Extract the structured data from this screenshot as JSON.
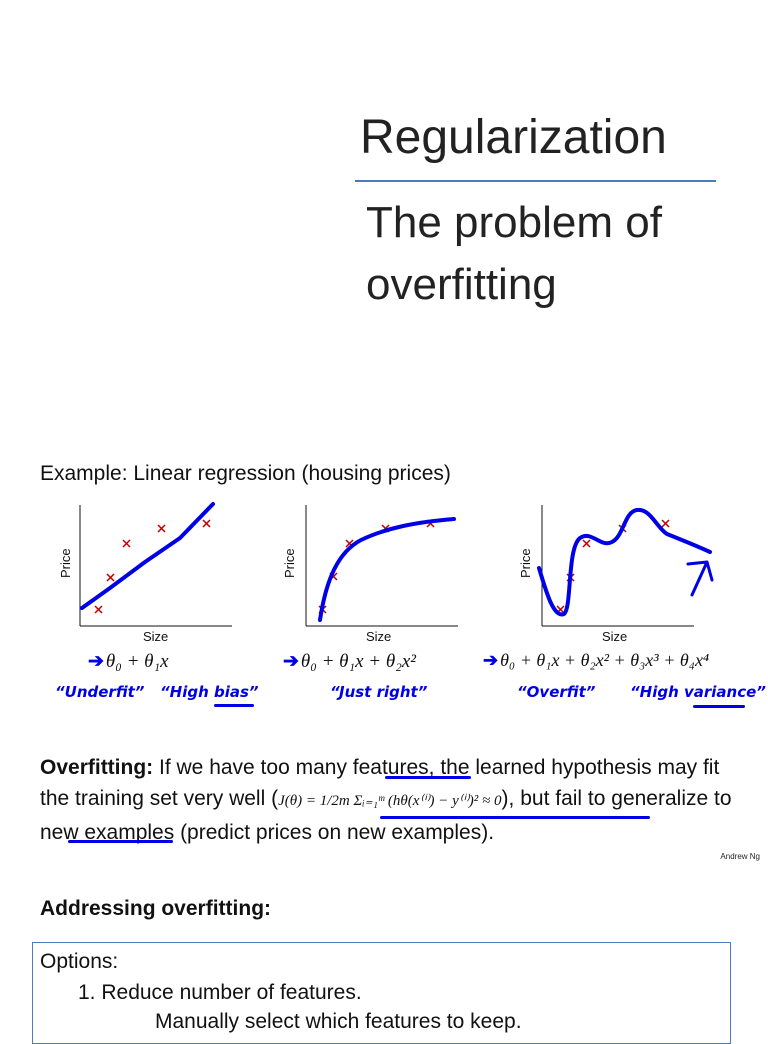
{
  "slide": {
    "title": "Regularization",
    "subtitle": "The problem of overfitting",
    "example_heading": "Example: Linear regression (housing prices)",
    "credit": "Andrew Ng"
  },
  "plots": [
    {
      "ylabel": "Price",
      "xlabel": "Size",
      "formula": "θ₀ + θ₁x",
      "annotations": [
        "“Underfit”",
        "“High bias”"
      ]
    },
    {
      "ylabel": "Price",
      "xlabel": "Size",
      "formula": "θ₀ + θ₁x + θ₂x²",
      "annotations": [
        "“Just right”"
      ]
    },
    {
      "ylabel": "Price",
      "xlabel": "Size",
      "formula": "θ₀ + θ₁x + θ₂x² + θ₃x³ + θ₄x⁴",
      "annotations": [
        "“Overfit”",
        "“High variance”"
      ]
    }
  ],
  "overfitting": {
    "label": "Overfitting:",
    "text1": " If we have too many features, the learned hypothesis may fit the training set very well (",
    "equation": "J(θ) = 1/2m Σᵢ₌₁ᵐ (hθ(x⁽ⁱ⁾) − y⁽ⁱ⁾)² ≈ 0",
    "text2": "), but fail to generalize to new examples (predict prices on new examples)."
  },
  "addressing": {
    "heading": "Addressing overfitting:",
    "options_label": "Options:",
    "option1": "1.   Reduce number of features.",
    "option1a": "Manually select which features to keep."
  },
  "colors": {
    "ink": "#0000e6",
    "marker": "#c00000",
    "accent_rule": "#4a7bbd"
  }
}
